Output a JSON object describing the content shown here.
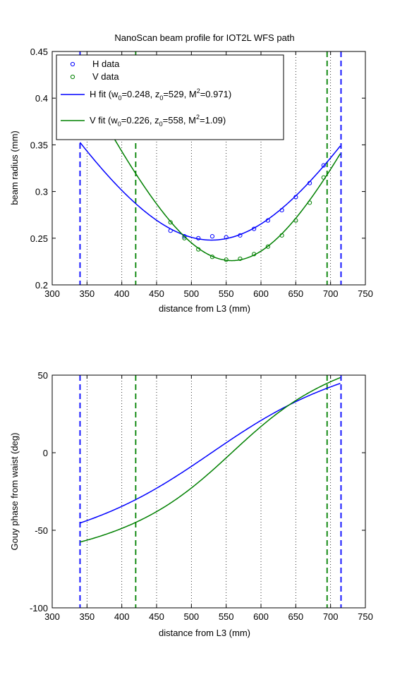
{
  "chart_data": [
    {
      "type": "line",
      "title": "NanoScan beam profile for IOT2L WFS path",
      "xlabel": "distance from L3 (mm)",
      "ylabel": "beam radius (mm)",
      "xlim": [
        300,
        750
      ],
      "ylim": [
        0.2,
        0.45
      ],
      "xticks": [
        300,
        350,
        400,
        450,
        500,
        550,
        600,
        650,
        700,
        750
      ],
      "yticks": [
        0.2,
        0.25,
        0.3,
        0.35,
        0.4,
        0.45
      ],
      "ytick_labels": [
        "0.2",
        "0.25",
        "0.3",
        "0.35",
        "0.4",
        "0.45"
      ],
      "grid": "x-dotted",
      "legend_location": "top-left",
      "colors": {
        "H": "#0000ff",
        "V": "#008000"
      },
      "series": [
        {
          "name": "H data",
          "kind": "scatter",
          "color": "#0000ff",
          "x": [
            470,
            490,
            510,
            530,
            550,
            570,
            590,
            610,
            630,
            650,
            670,
            690
          ],
          "y": [
            0.258,
            0.252,
            0.25,
            0.252,
            0.251,
            0.253,
            0.26,
            0.269,
            0.28,
            0.294,
            0.309,
            0.328
          ]
        },
        {
          "name": "V data",
          "kind": "scatter",
          "color": "#008000",
          "x": [
            470,
            490,
            510,
            530,
            550,
            570,
            590,
            610,
            630,
            650,
            670,
            690
          ],
          "y": [
            0.267,
            0.25,
            0.238,
            0.23,
            0.227,
            0.228,
            0.233,
            0.241,
            0.253,
            0.269,
            0.288,
            0.315
          ]
        },
        {
          "name": "H fit",
          "kind": "fit",
          "color": "#0000ff",
          "w0": 0.248,
          "z0": 529,
          "m2": 0.971,
          "range": [
            340,
            715
          ]
        },
        {
          "name": "V fit",
          "kind": "fit",
          "color": "#008000",
          "w0": 0.226,
          "z0": 558,
          "m2": 1.09,
          "range": [
            340,
            715
          ]
        }
      ],
      "vlines": [
        {
          "x": 340,
          "color": "#0000ff"
        },
        {
          "x": 715,
          "color": "#0000ff"
        },
        {
          "x": 420,
          "color": "#008000"
        },
        {
          "x": 695,
          "color": "#008000"
        }
      ],
      "legend": [
        {
          "label": "H data",
          "marker": "circle",
          "color": "#0000ff"
        },
        {
          "label": "V data",
          "marker": "circle",
          "color": "#008000"
        },
        {
          "label_parts": [
            "H fit (w",
            "0",
            "=0.248, z",
            "0",
            "=529, M",
            "2",
            "=0.971)"
          ],
          "marker": "line",
          "color": "#0000ff"
        },
        {
          "label_parts": [
            "V fit (w",
            "0",
            "=0.226, z",
            "0",
            "=558, M",
            "2",
            "=1.09)"
          ],
          "marker": "line",
          "color": "#008000"
        }
      ]
    },
    {
      "type": "line",
      "title": "",
      "xlabel": "distance from L3 (mm)",
      "ylabel": "Gouy phase from waist (deg)",
      "xlim": [
        300,
        750
      ],
      "ylim": [
        -100,
        50
      ],
      "xticks": [
        300,
        350,
        400,
        450,
        500,
        550,
        600,
        650,
        700,
        750
      ],
      "yticks": [
        -100,
        -50,
        0,
        50
      ],
      "ytick_labels": [
        "-100",
        "-50",
        "0",
        "50"
      ],
      "grid": "x-dotted",
      "series": [
        {
          "name": "H",
          "kind": "gouy",
          "color": "#0000ff",
          "w0": 0.248,
          "z0": 529,
          "m2": 0.971,
          "range": [
            340,
            715
          ]
        },
        {
          "name": "V",
          "kind": "gouy",
          "color": "#008000",
          "w0": 0.226,
          "z0": 558,
          "m2": 1.09,
          "range": [
            340,
            715
          ]
        }
      ],
      "vlines": [
        {
          "x": 340,
          "color": "#0000ff"
        },
        {
          "x": 715,
          "color": "#0000ff"
        },
        {
          "x": 420,
          "color": "#008000"
        },
        {
          "x": 695,
          "color": "#008000"
        }
      ]
    }
  ]
}
